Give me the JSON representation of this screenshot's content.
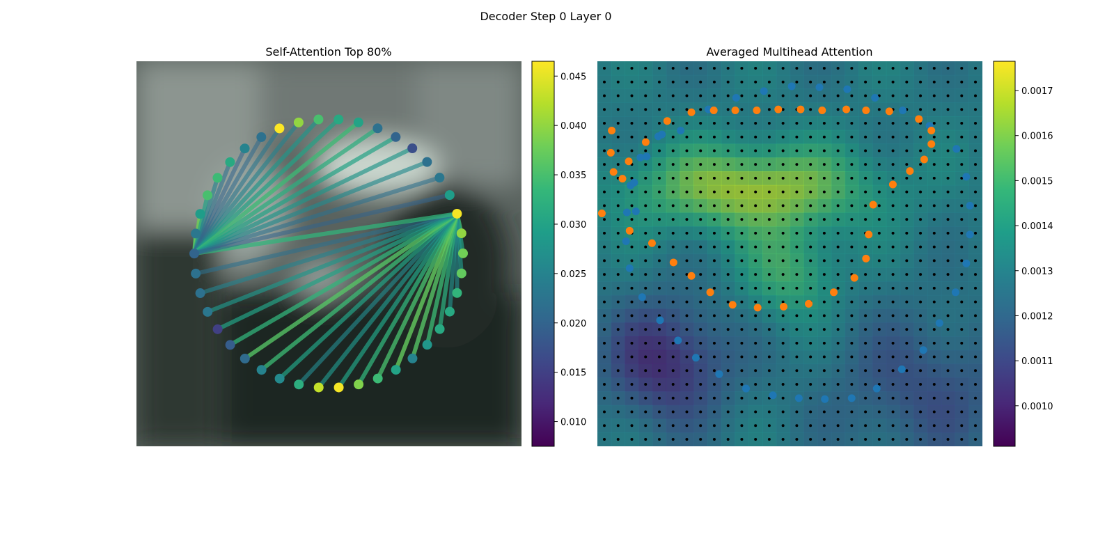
{
  "figure": {
    "title": "Decoder Step 0 Layer 0"
  },
  "colors": {
    "viridis": [
      "#440154",
      "#482878",
      "#3e4989",
      "#31688e",
      "#26828e",
      "#1f9e89",
      "#35b779",
      "#6ece58",
      "#b5de2b",
      "#fde725"
    ],
    "outer_points": "#1f77b4",
    "inner_points": "#ff7f0e",
    "grid_points": "#000000",
    "photo_base": "#3d4744"
  },
  "chart_data": [
    {
      "type": "scatter",
      "title": "Self-Attention Top 80%",
      "description_kind": "attention-circle",
      "colorbar": {
        "min": 0.0075,
        "max": 0.0465,
        "ticks": [
          "0.010",
          "0.015",
          "0.020",
          "0.025",
          "0.030",
          "0.035",
          "0.040",
          "0.045"
        ],
        "tick_values": [
          0.01,
          0.015,
          0.02,
          0.025,
          0.03,
          0.035,
          0.04,
          0.045
        ]
      },
      "num_points": 42,
      "query_point_indices": [
        11,
        34
      ],
      "point_values": [
        0.047,
        0.04,
        0.035,
        0.031,
        0.03,
        0.022,
        0.02,
        0.017,
        0.022,
        0.023,
        0.029,
        0.046,
        0.04,
        0.038,
        0.037,
        0.033,
        0.031,
        0.031,
        0.028,
        0.025,
        0.03,
        0.034,
        0.039,
        0.046,
        0.043,
        0.032,
        0.026,
        0.025,
        0.021,
        0.019,
        0.015,
        0.023,
        0.022,
        0.022,
        0.02,
        0.023,
        0.029,
        0.035,
        0.034,
        0.031,
        0.025,
        0.022
      ],
      "edges": [
        {
          "from": 11,
          "targets": [
            12,
            13,
            14,
            15,
            16,
            17,
            18,
            19,
            20,
            21,
            22,
            23,
            24,
            25,
            26,
            27,
            28,
            29,
            30,
            31,
            32,
            33,
            34
          ],
          "weights": [
            0.035,
            0.03,
            0.028,
            0.026,
            0.027,
            0.032,
            0.034,
            0.036,
            0.037,
            0.035,
            0.033,
            0.03,
            0.028,
            0.026,
            0.03,
            0.034,
            0.036,
            0.033,
            0.03,
            0.028,
            0.025,
            0.022,
            0.033
          ]
        },
        {
          "from": 34,
          "targets": [
            35,
            36,
            37,
            38,
            39,
            40,
            41,
            0,
            1,
            2,
            3,
            4,
            5,
            6,
            7,
            8,
            9,
            10
          ],
          "weights": [
            0.035,
            0.038,
            0.03,
            0.025,
            0.022,
            0.02,
            0.021,
            0.023,
            0.025,
            0.028,
            0.03,
            0.034,
            0.032,
            0.03,
            0.028,
            0.026,
            0.022,
            0.02
          ]
        }
      ]
    },
    {
      "type": "scatter",
      "title": "Averaged Multihead Attention",
      "description_kind": "attention-heatmap-with-points",
      "colorbar": {
        "min": 0.00091,
        "max": 0.001765,
        "ticks": [
          "0.0010",
          "0.0011",
          "0.0012",
          "0.0013",
          "0.0014",
          "0.0015",
          "0.0016",
          "0.0017"
        ],
        "tick_values": [
          0.001,
          0.0011,
          0.0012,
          0.0013,
          0.0014,
          0.0015,
          0.0016,
          0.0017
        ]
      },
      "grid_size": 28,
      "series": [
        {
          "name": "outer",
          "points": [
            [
              943,
              192
            ],
            [
              974,
              170
            ],
            [
              1005,
              158
            ],
            [
              1036,
              151
            ],
            [
              1067,
              146
            ],
            [
              1098,
              147
            ],
            [
              1129,
              149
            ],
            [
              1160,
              158
            ],
            [
              1191,
              171
            ],
            [
              1221,
              187
            ],
            [
              1251,
              211
            ],
            [
              1262,
              240
            ],
            [
              1266,
              270
            ],
            [
              1266,
              300
            ],
            [
              1262,
              330
            ],
            [
              1250,
              360
            ],
            [
              1232,
              392
            ],
            [
              1214,
              420
            ],
            [
              1190,
              440
            ],
            [
              1162,
              460
            ],
            [
              1134,
              470
            ],
            [
              1104,
              471
            ],
            [
              1075,
              470
            ],
            [
              1046,
              467
            ],
            [
              1016,
              460
            ],
            [
              986,
              445
            ],
            [
              960,
              428
            ],
            [
              940,
              410
            ],
            [
              920,
              389
            ],
            [
              900,
              365
            ],
            [
              886,
              335
            ],
            [
              882,
              307
            ],
            [
              883,
              277
            ],
            [
              887,
              249
            ],
            [
              898,
              220
            ],
            [
              918,
              198
            ],
            [
              893,
              276
            ],
            [
              891,
              246
            ],
            [
              905,
              219
            ],
            [
              922,
              196
            ]
          ]
        },
        {
          "name": "inner",
          "points": [
            [
              866,
              192
            ],
            [
              865,
              215
            ],
            [
              868,
              235
            ],
            [
              878,
              242
            ],
            [
              885,
              224
            ],
            [
              904,
              204
            ],
            [
              928,
              182
            ],
            [
              955,
              173
            ],
            [
              980,
              171
            ],
            [
              1004,
              171
            ],
            [
              1028,
              171
            ],
            [
              1052,
              170
            ],
            [
              1077,
              170
            ],
            [
              1101,
              171
            ],
            [
              1128,
              170
            ],
            [
              1150,
              171
            ],
            [
              1176,
              172
            ],
            [
              1209,
              180
            ],
            [
              1223,
              192
            ],
            [
              1223,
              206
            ],
            [
              1215,
              222
            ],
            [
              1199,
              234
            ],
            [
              1180,
              248
            ],
            [
              1158,
              269
            ],
            [
              1153,
              300
            ],
            [
              1150,
              325
            ],
            [
              1137,
              345
            ],
            [
              1114,
              360
            ],
            [
              1086,
              372
            ],
            [
              1058,
              375
            ],
            [
              1029,
              376
            ],
            [
              1001,
              373
            ],
            [
              976,
              360
            ],
            [
              955,
              343
            ],
            [
              935,
              329
            ],
            [
              911,
              309
            ],
            [
              886,
              296
            ],
            [
              855,
              278
            ]
          ]
        }
      ]
    }
  ]
}
